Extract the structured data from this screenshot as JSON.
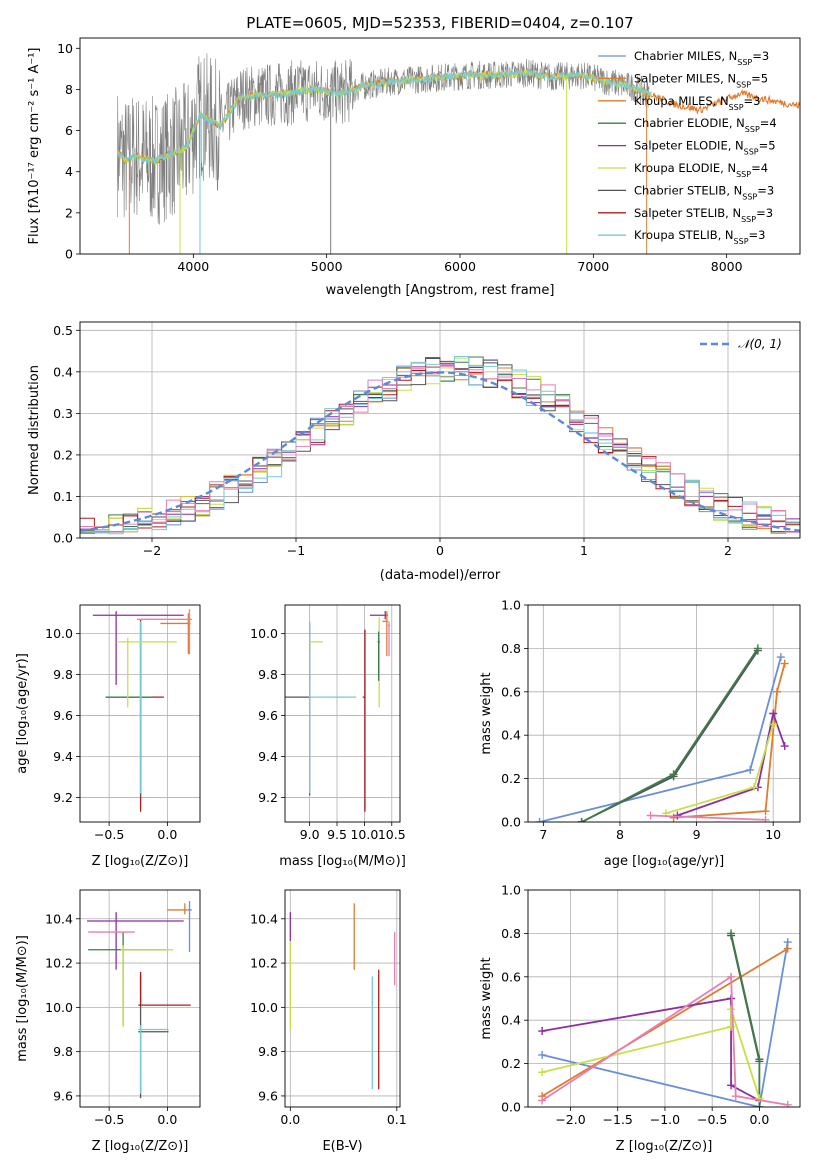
{
  "figure_title": "PLATE=0605, MJD=52353, FIBERID=0404, z=0.107",
  "colors": {
    "Chabrier MILES": "#6a8fd6",
    "Salpeter MILES": "#e07b2e",
    "Kroupa MILES": "#e07b2e",
    "Chabrier ELODIE": "#3e7d4a",
    "Salpeter ELODIE": "#8e2ea0",
    "Kroupa ELODIE": "#c8df45",
    "Chabrier STELIB": "#555555",
    "Salpeter STELIB": "#b31b1b",
    "Kroupa STELIB": "#77c9d6",
    "pink": "#e77fb4",
    "data": "#7f7f7f",
    "normal": "#5b8ad8"
  },
  "chart_data": [
    {
      "id": "spectrum",
      "type": "line",
      "title": "PLATE=0605, MJD=52353, FIBERID=0404, z=0.107",
      "xlabel": "wavelength [Angstrom, rest frame]",
      "ylabel": "Flux [fλ10⁻¹⁷ erg cm⁻² s⁻¹ A⁻¹]",
      "xlim": [
        3150,
        8550
      ],
      "ylim": [
        0,
        10.5
      ],
      "xticks": [
        4000,
        5000,
        6000,
        7000,
        8000
      ],
      "yticks": [
        0,
        2,
        4,
        6,
        8,
        10
      ],
      "grid": false,
      "legend_position": "top-right",
      "legend": [
        {
          "label": "Chabrier MILES, N",
          "sub": "SSP",
          "suffix": "=3",
          "color_key": "Chabrier MILES"
        },
        {
          "label": "Salpeter MILES, N",
          "sub": "SSP",
          "suffix": "=5",
          "color_key": "Salpeter MILES"
        },
        {
          "label": "Kroupa MILES, N",
          "sub": "SSP",
          "suffix": "=3",
          "color_key": "Kroupa MILES"
        },
        {
          "label": "Chabrier ELODIE, N",
          "sub": "SSP",
          "suffix": "=4",
          "color_key": "Chabrier ELODIE"
        },
        {
          "label": "Salpeter ELODIE, N",
          "sub": "SSP",
          "suffix": "=5",
          "color_key": "Salpeter ELODIE"
        },
        {
          "label": "Kroupa ELODIE, N",
          "sub": "SSP",
          "suffix": "=4",
          "color_key": "Kroupa ELODIE"
        },
        {
          "label": "Chabrier STELIB, N",
          "sub": "SSP",
          "suffix": "=3",
          "color_key": "Chabrier STELIB"
        },
        {
          "label": "Salpeter STELIB, N",
          "sub": "SSP",
          "suffix": "=3",
          "color_key": "Salpeter STELIB"
        },
        {
          "label": "Kroupa STELIB, N",
          "sub": "SSP",
          "suffix": "=3",
          "color_key": "Kroupa STELIB"
        }
      ],
      "continuum": {
        "x": [
          3430,
          3500,
          3550,
          3700,
          3850,
          3950,
          4050,
          4200,
          4350,
          4500,
          4700,
          4900,
          5100,
          5300,
          5500,
          5700,
          5900,
          6100,
          6300,
          6500,
          6700,
          6900,
          7100,
          7300,
          7450,
          7600,
          7800,
          7950,
          8100,
          8300,
          8550
        ],
        "y": [
          5.0,
          4.5,
          4.8,
          4.5,
          4.9,
          5.2,
          6.8,
          6.2,
          7.6,
          7.7,
          7.8,
          8.0,
          7.8,
          8.2,
          8.4,
          8.5,
          8.6,
          8.7,
          8.7,
          8.8,
          8.6,
          8.7,
          8.4,
          8.1,
          7.7,
          7.3,
          7.0,
          7.4,
          7.8,
          7.5,
          7.2
        ]
      },
      "notes": "Observed data (grey) shown with noise; nine model fits overlap the continuum."
    },
    {
      "id": "residuals",
      "type": "histogram",
      "xlabel": "(data-model)/error",
      "ylabel": "Normed distribution",
      "xlim": [
        -2.5,
        2.5
      ],
      "ylim": [
        0,
        0.52
      ],
      "xticks": [
        -2,
        -1,
        0,
        1,
        2
      ],
      "yticks": [
        0.0,
        0.1,
        0.2,
        0.3,
        0.4,
        0.5
      ],
      "grid": true,
      "legend_position": "top-right",
      "legend": [
        {
          "label": "𝒩(0, 1)",
          "style": "dashed",
          "color_key": "normal"
        }
      ],
      "bin_width": 0.1,
      "bin_start": -2.5,
      "reference_curve": "normal(0,1)"
    },
    {
      "id": "age-vs-Z",
      "type": "scatter",
      "xlabel": "Z [log₁₀(Z/Z⊙)]",
      "ylabel": "age  [log₁₀(age/yr)]",
      "xlim": [
        -0.75,
        0.28
      ],
      "ylim": [
        9.08,
        10.14
      ],
      "xticks": [
        -0.5,
        0.0
      ],
      "yticks": [
        9.2,
        9.4,
        9.6,
        9.8,
        10.0
      ],
      "grid": true,
      "errorbars": [
        {
          "x": -0.23,
          "y": 9.69,
          "xerr": [
            0.3,
            0.2
          ],
          "yerr": [
            0.56,
            0.38
          ],
          "color_key": "Salpeter STELIB"
        },
        {
          "x": -0.23,
          "y": 9.69,
          "xerr": [
            0.3,
            0.1
          ],
          "yerr": [
            0.48,
            0.36
          ],
          "color_key": "Chabrier ELODIE"
        },
        {
          "x": -0.23,
          "y": 9.69,
          "xerr": [
            0.01,
            0.01
          ],
          "yerr": [
            0.47,
            0.37
          ],
          "color_key": "Kroupa STELIB"
        },
        {
          "x": -0.44,
          "y": 10.09,
          "xerr": [
            0.2,
            0.58
          ],
          "yerr": [
            0.34,
            0.02
          ],
          "color_key": "Salpeter ELODIE"
        },
        {
          "x": 0.18,
          "y": 10.05,
          "xerr": [
            0.24,
            0.02
          ],
          "yerr": [
            0.15,
            0.05
          ],
          "color_key": "Salpeter MILES"
        },
        {
          "x": -0.34,
          "y": 9.96,
          "xerr": [
            0.08,
            0.42
          ],
          "yerr": [
            0.32,
            0.02
          ],
          "color_key": "Kroupa ELODIE"
        },
        {
          "x": 0.19,
          "y": 10.07,
          "xerr": [
            0.45,
            0.02
          ],
          "yerr": [
            0.17,
            0.05
          ],
          "color_key": "pink"
        }
      ]
    },
    {
      "id": "age-vs-mass",
      "type": "scatter",
      "xlabel": "mass [log₁₀(M/M⊙)]",
      "ylabel": "",
      "xlim": [
        8.55,
        10.65
      ],
      "ylim": [
        9.08,
        10.14
      ],
      "xticks": [
        8.5,
        9.0,
        9.5,
        10.0,
        10.5
      ],
      "ytick_labels_only": [
        9.2,
        9.4,
        9.6,
        9.8,
        10.0
      ],
      "grid": true,
      "errorbars": [
        {
          "x": 9.0,
          "y": 9.69,
          "xerr": [
            0.45,
            0.02
          ],
          "yerr": [
            0.48,
            0.36
          ],
          "color_key": "Chabrier STELIB"
        },
        {
          "x": 10.01,
          "y": 9.69,
          "xerr": [
            0.04,
            0.01
          ],
          "yerr": [
            0.56,
            0.33
          ],
          "color_key": "Salpeter STELIB"
        },
        {
          "x": 9.0,
          "y": 9.69,
          "xerr": [
            0.01,
            0.85
          ],
          "yerr": [
            0.47,
            0.37
          ],
          "color_key": "Kroupa STELIB"
        },
        {
          "x": 10.38,
          "y": 10.09,
          "xerr": [
            0.28,
            0.05
          ],
          "yerr": [
            0.02,
            0.02
          ],
          "color_key": "Salpeter ELODIE"
        },
        {
          "x": 9.02,
          "y": 9.96,
          "xerr": [
            0.02,
            0.22
          ],
          "yerr": [
            0.0,
            0.0
          ],
          "color_key": "Kroupa ELODIE"
        },
        {
          "x": 10.27,
          "y": 9.96,
          "xerr": [
            0.02,
            0.02
          ],
          "yerr": [
            0.32,
            0.12
          ],
          "color_key": "Kroupa ELODIE"
        },
        {
          "x": 10.26,
          "y": 9.96,
          "xerr": [
            0.02,
            0.02
          ],
          "yerr": [
            0.19,
            0.05
          ],
          "color_key": "Chabrier ELODIE"
        },
        {
          "x": 10.41,
          "y": 10.06,
          "xerr": [
            0.08,
            0.02
          ],
          "yerr": [
            0.17,
            0.05
          ],
          "color_key": "Salpeter MILES"
        },
        {
          "x": 10.45,
          "y": 10.04,
          "xerr": [
            0.02,
            0.02
          ],
          "yerr": [
            0.15,
            0.02
          ],
          "color_key": "pink"
        }
      ]
    },
    {
      "id": "weights-vs-age",
      "type": "line",
      "xlabel": "age  [log₁₀(age/yr)]",
      "ylabel": "mass weight",
      "xlim": [
        6.8,
        10.35
      ],
      "ylim": [
        0,
        1.0
      ],
      "xticks": [
        7,
        8,
        9,
        10
      ],
      "yticks": [
        0.0,
        0.2,
        0.4,
        0.6,
        0.8,
        1.0
      ],
      "grid": true,
      "series": [
        {
          "color_key": "Chabrier MILES",
          "x": [
            6.95,
            9.7,
            10.1
          ],
          "y": [
            0.0,
            0.24,
            0.76
          ]
        },
        {
          "color_key": "Salpeter MILES",
          "x": [
            8.7,
            9.9,
            10.05,
            10.15
          ],
          "y": [
            0.02,
            0.05,
            0.6,
            0.73
          ]
        },
        {
          "color_key": "Chabrier STELIB",
          "x": [
            7.5,
            8.7,
            9.8
          ],
          "y": [
            0.0,
            0.21,
            0.79
          ]
        },
        {
          "color_key": "Chabrier ELODIE",
          "x": [
            7.5,
            8.7,
            9.8
          ],
          "y": [
            0.0,
            0.22,
            0.8
          ]
        },
        {
          "color_key": "Salpeter ELODIE",
          "x": [
            8.75,
            9.8,
            10.0,
            10.15
          ],
          "y": [
            0.03,
            0.16,
            0.5,
            0.35
          ]
        },
        {
          "color_key": "Kroupa ELODIE",
          "x": [
            8.6,
            9.75,
            10.0
          ],
          "y": [
            0.04,
            0.16,
            0.45
          ]
        },
        {
          "color_key": "pink",
          "x": [
            8.4,
            9.9
          ],
          "y": [
            0.03,
            0.01
          ]
        }
      ]
    },
    {
      "id": "mass-vs-Z",
      "type": "scatter",
      "xlabel": "Z [log₁₀(Z/Z⊙)]",
      "ylabel": "mass [log₁₀(M/M⊙)]",
      "xlim": [
        -0.75,
        0.28
      ],
      "ylim": [
        9.55,
        10.53
      ],
      "xticks": [
        -0.5,
        0.0
      ],
      "yticks": [
        9.6,
        9.8,
        10.0,
        10.2,
        10.4
      ],
      "grid": true,
      "errorbars": [
        {
          "x": -0.23,
          "y": 9.89,
          "xerr": [
            0.02,
            0.24
          ],
          "yerr": [
            0.3,
            0.26
          ],
          "color_key": "Chabrier STELIB"
        },
        {
          "x": -0.23,
          "y": 10.01,
          "xerr": [
            0.02,
            0.43
          ],
          "yerr": [
            0.0,
            0.15
          ],
          "color_key": "Salpeter STELIB"
        },
        {
          "x": -0.23,
          "y": 9.9,
          "xerr": [
            0.02,
            0.24
          ],
          "yerr": [
            0.29,
            0.02
          ],
          "color_key": "Kroupa STELIB"
        },
        {
          "x": -0.44,
          "y": 10.39,
          "xerr": [
            0.25,
            0.58
          ],
          "yerr": [
            0.22,
            0.04
          ],
          "color_key": "Salpeter ELODIE"
        },
        {
          "x": -0.38,
          "y": 10.26,
          "xerr": [
            0.3,
            0.37
          ],
          "yerr": [
            0.34,
            0.08
          ],
          "color_key": "Chabrier ELODIE"
        },
        {
          "x": -0.38,
          "y": 10.26,
          "xerr": [
            0.02,
            0.43
          ],
          "yerr": [
            0.35,
            0.02
          ],
          "color_key": "Kroupa ELODIE"
        },
        {
          "x": 0.15,
          "y": 10.44,
          "xerr": [
            0.15,
            0.02
          ],
          "yerr": [
            0.02,
            0.03
          ],
          "color_key": "Salpeter MILES"
        },
        {
          "x": 0.19,
          "y": 10.44,
          "xerr": [
            0.02,
            0.02
          ],
          "yerr": [
            0.19,
            0.04
          ],
          "color_key": "Chabrier MILES"
        },
        {
          "x": -0.3,
          "y": 10.34,
          "xerr": [
            0.38,
            0.02
          ],
          "yerr": [
            0.0,
            0.0
          ],
          "color_key": "pink"
        }
      ]
    },
    {
      "id": "mass-vs-EBV",
      "type": "scatter",
      "xlabel": "E(B-V)",
      "ylabel": "",
      "xlim": [
        -0.005,
        0.103
      ],
      "ylim": [
        9.55,
        10.53
      ],
      "xticks": [
        0.0,
        0.1
      ],
      "ytick_labels_only": [
        9.6,
        9.8,
        10.0,
        10.2,
        10.4
      ],
      "grid": true,
      "errorbars": [
        {
          "x": 0.0,
          "y": 10.0,
          "xerr": [
            0.0,
            0.0
          ],
          "yerr": [
            0.1,
            0.3
          ],
          "color_key": "Kroupa ELODIE"
        },
        {
          "x": 0.0,
          "y": 10.35,
          "xerr": [
            0.0,
            0.0
          ],
          "yerr": [
            0.05,
            0.08
          ],
          "color_key": "Salpeter ELODIE"
        },
        {
          "x": 0.06,
          "y": 10.32,
          "xerr": [
            0.0,
            0.0
          ],
          "yerr": [
            0.15,
            0.15
          ],
          "color_key": "Salpeter MILES"
        },
        {
          "x": 0.077,
          "y": 9.88,
          "xerr": [
            0.0,
            0.0
          ],
          "yerr": [
            0.25,
            0.26
          ],
          "color_key": "Kroupa STELIB"
        },
        {
          "x": 0.083,
          "y": 9.95,
          "xerr": [
            0.0,
            0.0
          ],
          "yerr": [
            0.32,
            0.22
          ],
          "color_key": "Salpeter STELIB"
        },
        {
          "x": 0.098,
          "y": 10.22,
          "xerr": [
            0.0,
            0.0
          ],
          "yerr": [
            0.12,
            0.12
          ],
          "color_key": "pink"
        }
      ]
    },
    {
      "id": "weights-vs-Z",
      "type": "line",
      "xlabel": "Z [log₁₀(Z/Z⊙)]",
      "ylabel": "mass weight",
      "xlim": [
        -2.45,
        0.43
      ],
      "ylim": [
        0,
        1.0
      ],
      "xticks": [
        -2.0,
        -1.5,
        -1.0,
        -0.5,
        0.0
      ],
      "yticks": [
        0.0,
        0.2,
        0.4,
        0.6,
        0.8,
        1.0
      ],
      "grid": true,
      "series": [
        {
          "color_key": "Chabrier MILES",
          "x": [
            -2.3,
            0.0,
            0.3
          ],
          "y": [
            0.24,
            0.0,
            0.76
          ]
        },
        {
          "color_key": "Salpeter MILES",
          "x": [
            -2.3,
            0.3
          ],
          "y": [
            0.05,
            0.73
          ]
        },
        {
          "color_key": "Chabrier STELIB",
          "x": [
            -0.3,
            0.0
          ],
          "y": [
            0.79,
            0.21
          ]
        },
        {
          "color_key": "Chabrier ELODIE",
          "x": [
            -0.3,
            0.0,
            0.0
          ],
          "y": [
            0.8,
            0.22,
            0.0
          ]
        },
        {
          "color_key": "Salpeter ELODIE",
          "x": [
            -2.3,
            -0.3,
            -0.3,
            0.0
          ],
          "y": [
            0.35,
            0.5,
            0.1,
            0.03
          ]
        },
        {
          "color_key": "Kroupa ELODIE",
          "x": [
            -2.3,
            -0.3,
            -0.3,
            0.0
          ],
          "y": [
            0.16,
            0.37,
            0.45,
            0.04
          ]
        },
        {
          "color_key": "pink",
          "x": [
            -2.3,
            -0.3,
            -0.25,
            0.3
          ],
          "y": [
            0.03,
            0.6,
            0.05,
            0.01
          ]
        }
      ]
    }
  ]
}
